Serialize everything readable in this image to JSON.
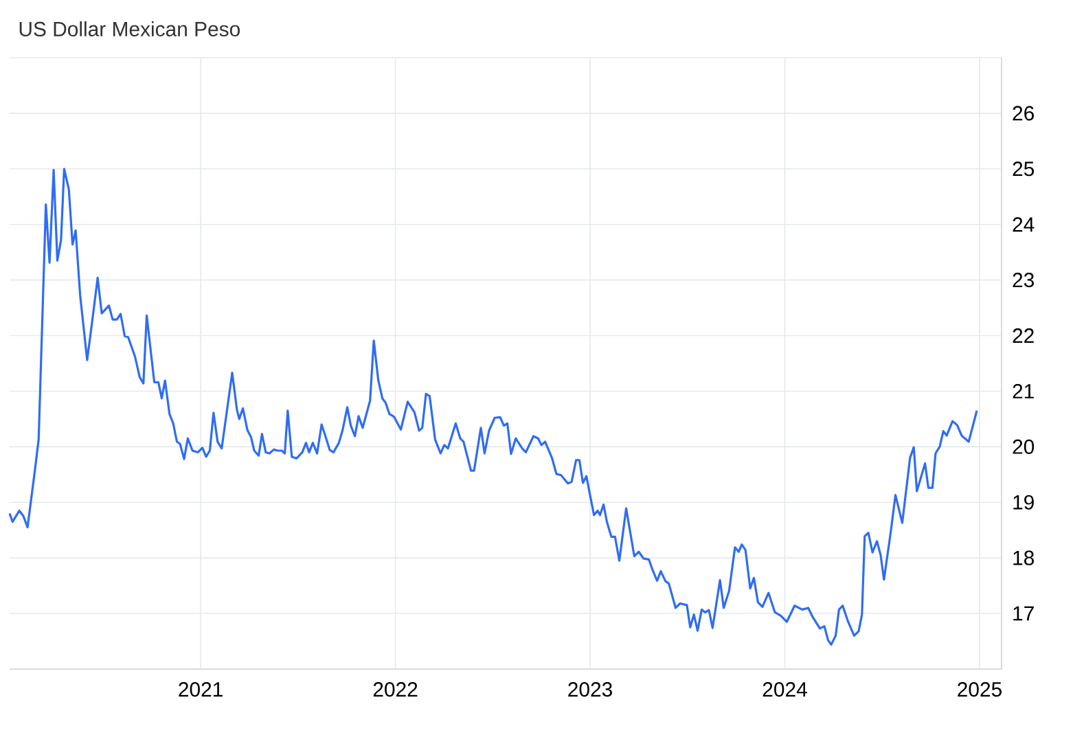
{
  "chart_data": {
    "type": "line",
    "title": "US Dollar Mexican Peso",
    "xlim": [
      2020.019,
      2025.113
    ],
    "xticks": [
      2021,
      2022,
      2023,
      2024,
      2025
    ],
    "ylim": [
      16,
      27
    ],
    "yticks": [
      17,
      18,
      19,
      20,
      21,
      22,
      23,
      24,
      25,
      26,
      {
        "value": 27,
        "label": null
      }
    ],
    "grid": true,
    "line_style": "solid",
    "series": [
      {
        "color": "#2f6cf6",
        "x": [
          2020.019,
          2020.034,
          2020.069,
          2020.09,
          2020.111,
          2020.146,
          2020.168,
          2020.205,
          2020.224,
          2020.245,
          2020.264,
          2020.283,
          2020.299,
          2020.323,
          2020.342,
          2020.358,
          2020.381,
          2020.417,
          2020.441,
          2020.471,
          2020.492,
          2020.529,
          2020.548,
          2020.57,
          2020.589,
          2020.61,
          2020.628,
          2020.663,
          2020.687,
          2020.706,
          2020.723,
          2020.762,
          2020.783,
          2020.8,
          2020.817,
          2020.84,
          2020.859,
          2020.878,
          2020.894,
          2020.915,
          2020.934,
          2020.958,
          2020.986,
          2021.009,
          2021.028,
          2021.047,
          2021.066,
          2021.087,
          2021.108,
          2021.162,
          2021.186,
          2021.198,
          2021.217,
          2021.24,
          2021.259,
          2021.275,
          2021.298,
          2021.315,
          2021.334,
          2021.353,
          2021.376,
          2021.393,
          2021.416,
          2021.432,
          2021.447,
          2021.468,
          2021.492,
          2021.522,
          2021.541,
          2021.557,
          2021.576,
          2021.598,
          2021.621,
          2021.64,
          2021.663,
          2021.682,
          2021.71,
          2021.729,
          2021.753,
          2021.771,
          2021.792,
          2021.811,
          2021.832,
          2021.87,
          2021.889,
          2021.912,
          2021.933,
          2021.95,
          2021.969,
          2021.993,
          2022.028,
          2022.063,
          2022.098,
          2022.122,
          2022.138,
          2022.157,
          2022.176,
          2022.204,
          2022.232,
          2022.251,
          2022.27,
          2022.31,
          2022.333,
          2022.35,
          2022.388,
          2022.404,
          2022.439,
          2022.458,
          2022.481,
          2022.51,
          2022.538,
          2022.557,
          2022.575,
          2022.594,
          2022.618,
          2022.651,
          2022.67,
          2022.709,
          2022.733,
          2022.75,
          2022.769,
          2022.804,
          2022.827,
          2022.85,
          2022.886,
          2022.905,
          2022.928,
          2022.945,
          2022.963,
          2022.981,
          2022.999,
          2023.02,
          2023.039,
          2023.051,
          2023.069,
          2023.086,
          2023.109,
          2023.128,
          2023.15,
          2023.185,
          2023.227,
          2023.25,
          2023.274,
          2023.302,
          2023.321,
          2023.344,
          2023.363,
          2023.387,
          2023.404,
          2023.439,
          2023.462,
          2023.497,
          2023.514,
          2023.533,
          2023.552,
          2023.573,
          2023.591,
          2023.61,
          2023.629,
          2023.667,
          2023.686,
          2023.714,
          2023.744,
          2023.763,
          2023.779,
          2023.798,
          2023.822,
          2023.841,
          2023.862,
          2023.885,
          2023.916,
          2023.949,
          2023.979,
          2024.01,
          2024.05,
          2024.09,
          2024.12,
          2024.144,
          2024.18,
          2024.203,
          2024.222,
          2024.238,
          2024.261,
          2024.278,
          2024.297,
          2024.325,
          2024.356,
          2024.379,
          2024.396,
          2024.41,
          2024.429,
          2024.45,
          2024.473,
          2024.492,
          2024.509,
          2024.544,
          2024.568,
          2024.603,
          2024.643,
          2024.662,
          2024.678,
          2024.72,
          2024.737,
          2024.758,
          2024.774,
          2024.795,
          2024.814,
          2024.831,
          2024.861,
          2024.885,
          2024.908,
          2024.944,
          2024.986
        ],
        "values": [
          18.8,
          18.65,
          18.85,
          18.75,
          18.55,
          19.5,
          20.13,
          24.36,
          23.31,
          24.98,
          23.35,
          23.72,
          25.0,
          24.63,
          23.64,
          23.89,
          22.73,
          21.56,
          22.2,
          23.04,
          22.4,
          22.54,
          22.29,
          22.29,
          22.39,
          21.99,
          21.97,
          21.62,
          21.25,
          21.14,
          22.36,
          21.16,
          21.16,
          20.87,
          21.19,
          20.59,
          20.42,
          20.09,
          20.05,
          19.78,
          20.15,
          19.93,
          19.9,
          19.98,
          19.82,
          19.93,
          20.61,
          20.09,
          19.97,
          21.33,
          20.67,
          20.5,
          20.69,
          20.3,
          20.17,
          19.93,
          19.84,
          20.23,
          19.9,
          19.88,
          19.95,
          19.93,
          19.93,
          19.88,
          20.65,
          19.82,
          19.79,
          19.9,
          20.07,
          19.9,
          20.07,
          19.88,
          20.4,
          20.2,
          19.94,
          19.9,
          20.07,
          20.3,
          20.71,
          20.38,
          20.19,
          20.55,
          20.34,
          20.83,
          21.91,
          21.2,
          20.87,
          20.79,
          20.59,
          20.54,
          20.31,
          20.81,
          20.62,
          20.29,
          20.34,
          20.95,
          20.91,
          20.13,
          19.88,
          20.03,
          19.97,
          20.42,
          20.15,
          20.09,
          19.57,
          19.57,
          20.34,
          19.88,
          20.29,
          20.52,
          20.53,
          20.38,
          20.42,
          19.87,
          20.15,
          19.97,
          19.9,
          20.19,
          20.15,
          20.03,
          20.09,
          19.8,
          19.51,
          19.49,
          19.34,
          19.37,
          19.76,
          19.76,
          19.35,
          19.47,
          19.14,
          18.77,
          18.85,
          18.77,
          18.96,
          18.65,
          18.38,
          18.38,
          17.95,
          18.89,
          18.03,
          18.11,
          17.99,
          17.97,
          17.78,
          17.59,
          17.76,
          17.58,
          17.54,
          17.1,
          17.18,
          17.15,
          16.75,
          16.98,
          16.69,
          17.07,
          17.02,
          17.06,
          16.74,
          17.6,
          17.1,
          17.41,
          18.19,
          18.11,
          18.24,
          18.14,
          17.45,
          17.64,
          17.2,
          17.12,
          17.37,
          17.02,
          16.96,
          16.85,
          17.14,
          17.07,
          17.1,
          16.93,
          16.73,
          16.77,
          16.52,
          16.44,
          16.6,
          17.07,
          17.14,
          16.85,
          16.6,
          16.68,
          16.98,
          18.39,
          18.45,
          18.1,
          18.3,
          18.05,
          17.61,
          18.47,
          19.13,
          18.63,
          19.8,
          19.99,
          19.2,
          19.7,
          19.26,
          19.26,
          19.88,
          20.0,
          20.28,
          20.2,
          20.46,
          20.39,
          20.2,
          20.09,
          20.65
        ]
      }
    ]
  }
}
